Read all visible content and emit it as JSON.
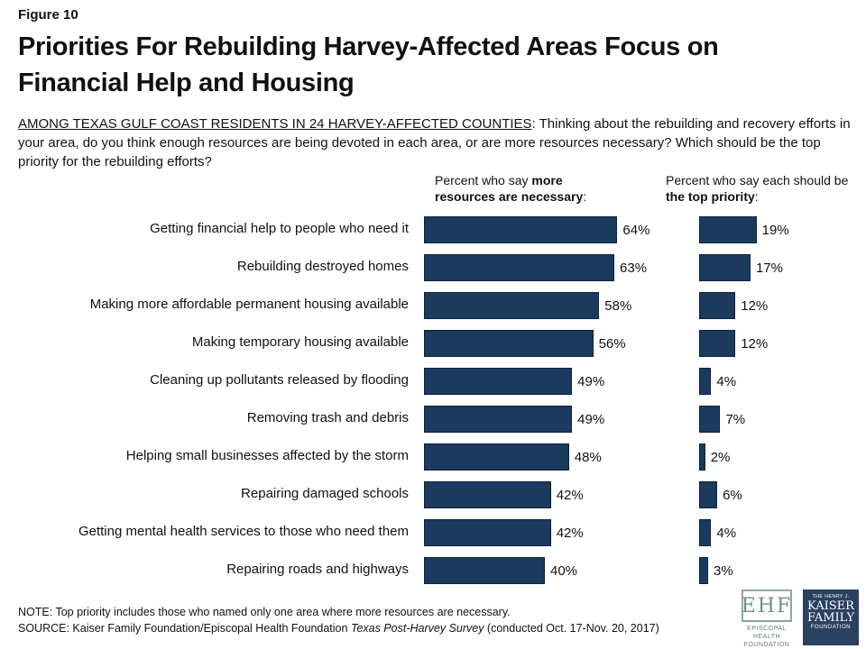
{
  "figure_label": "Figure 10",
  "title": "Priorities For Rebuilding Harvey-Affected Areas Focus on Financial Help and Housing",
  "question": {
    "population": "AMONG TEXAS GULF COAST RESIDENTS IN 24 HARVEY-AFFECTED COUNTIES",
    "text": ": Thinking about the rebuilding and recovery efforts in your area, do you think enough resources are being devoted in each area, or are more resources necessary? Which should be the top priority for the rebuilding efforts?"
  },
  "colors": {
    "bar": "#1a3a5e"
  },
  "chart_data": [
    {
      "type": "bar",
      "orientation": "horizontal",
      "header_plain": "Percent who say ",
      "header_bold": "more resources are necessary",
      "header_suffix": ":",
      "categories": [
        "Getting financial help to people who need it",
        "Rebuilding destroyed homes",
        "Making more affordable permanent housing available",
        "Making temporary housing available",
        "Cleaning up pollutants released by flooding",
        "Removing trash and debris",
        "Helping small businesses affected by the storm",
        "Repairing damaged schools",
        "Getting mental health services to those who need them",
        "Repairing roads and highways"
      ],
      "values": [
        64,
        63,
        58,
        56,
        49,
        49,
        48,
        42,
        42,
        40
      ],
      "labels": [
        "64%",
        "63%",
        "58%",
        "56%",
        "49%",
        "49%",
        "48%",
        "42%",
        "42%",
        "40%"
      ],
      "xlim": [
        0,
        100
      ],
      "grid": false
    },
    {
      "type": "bar",
      "orientation": "horizontal",
      "header_plain": "Percent who say each should be ",
      "header_bold": "the top priority",
      "header_suffix": ":",
      "values": [
        19,
        17,
        12,
        12,
        4,
        7,
        2,
        6,
        4,
        3
      ],
      "labels": [
        "19%",
        "17%",
        "12%",
        "12%",
        "4%",
        "7%",
        "2%",
        "6%",
        "4%",
        "3%"
      ],
      "xlim": [
        0,
        100
      ],
      "grid": false
    }
  ],
  "note": "NOTE: Top priority includes those who named only one area where more resources are necessary.",
  "source": {
    "prefix": "SOURCE: Kaiser Family Foundation/Episcopal Health Foundation ",
    "italic": "Texas Post-Harvey Survey",
    "suffix": " (conducted Oct. 17-Nov. 20, 2017)"
  },
  "logos": {
    "ehf_mark": "EHF",
    "ehf_line1": "EPISCOPAL HEALTH",
    "ehf_line2": "FOUNDATION",
    "kff_line1": "THE HENRY J.",
    "kff_line2": "KAISER",
    "kff_line3": "FAMILY",
    "kff_line4": "FOUNDATION"
  }
}
